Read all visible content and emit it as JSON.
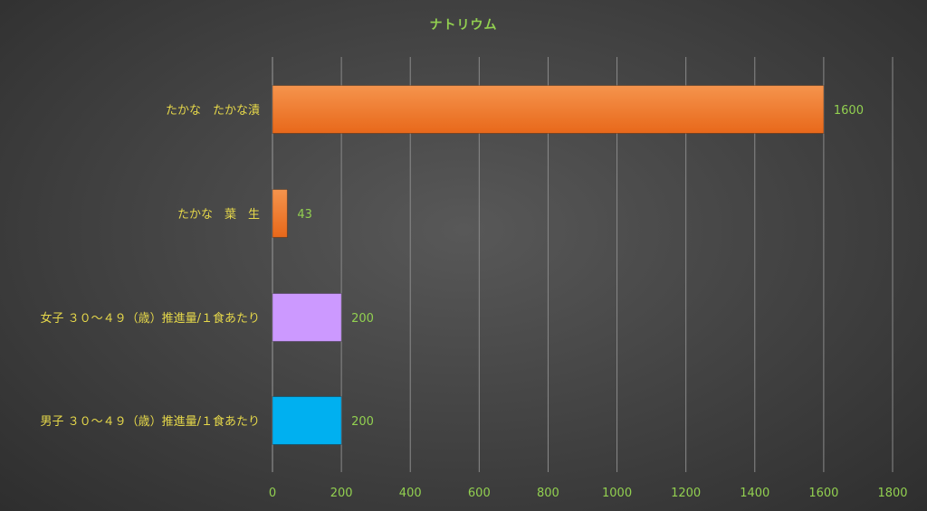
{
  "chart_data": {
    "type": "bar",
    "orientation": "horizontal",
    "title": "ナトリウム",
    "categories": [
      "たかな　たかな漬",
      "たかな　葉　生",
      "女子 ３０～４９（歳）推進量/１食あたり",
      "男子 ３０～４９（歳）推進量/１食あたり"
    ],
    "values": [
      1600,
      43,
      200,
      200
    ],
    "value_labels": [
      "1600",
      "43",
      "200",
      "200"
    ],
    "bar_colors": [
      "#f07c2a",
      "#f07c2a",
      "#cc99ff",
      "#00b0f0"
    ],
    "xlim": [
      0,
      1800
    ],
    "xticks": [
      0,
      200,
      400,
      600,
      800,
      1000,
      1200,
      1400,
      1600,
      1800
    ],
    "xtick_labels": [
      "0",
      "200",
      "400",
      "600",
      "800",
      "1000",
      "1200",
      "1400",
      "1600",
      "1800"
    ],
    "xlabel": "",
    "ylabel": "",
    "grid": true,
    "legend": "none"
  }
}
